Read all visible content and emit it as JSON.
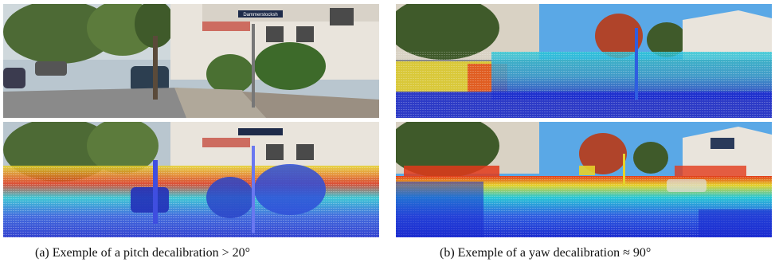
{
  "captions": {
    "a": "(a) Exemple of a pitch decalibration > 20°",
    "b": "(b) Exemple of a yaw decalibration ≈ 90°"
  },
  "signs": {
    "street_sign": "Dammerstocksh"
  },
  "colors": {
    "sky": "#cfe3f2",
    "sky_blue": "#5aa8e6",
    "road": "#8a8a8a",
    "foliage": "#3f5a2a",
    "building": "#e9e4dc",
    "lidar_near": "#1b2bd0",
    "lidar_mid": "#27c7d6",
    "lidar_far": "#e23a1a",
    "lidar_yellow": "#e6d22a"
  }
}
